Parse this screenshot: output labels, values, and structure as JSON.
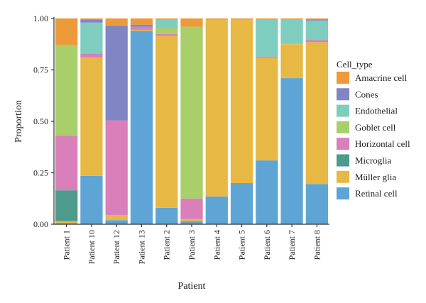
{
  "chart_data": {
    "type": "bar",
    "stacked": true,
    "xlabel": "Patient",
    "ylabel": "Proportion",
    "ylim": [
      0,
      1
    ],
    "yticks": [
      "0.00",
      "0.25",
      "0.50",
      "0.75",
      "1.00"
    ],
    "ytick_values": [
      0,
      0.25,
      0.5,
      0.75,
      1.0
    ],
    "categories": [
      "Patient 1",
      "Patient 10",
      "Patient 12",
      "Patient 13",
      "Patient 2",
      "Patient 3",
      "Patient 4",
      "Patient 5",
      "Patient 6",
      "Patient 7",
      "Patient 8"
    ],
    "legend_title": "Cell_type",
    "legend_position": "right",
    "grid": false,
    "series": [
      {
        "name": "Retinal cell",
        "color": "#5ea5d5",
        "values": [
          0.005,
          0.235,
          0.02,
          0.94,
          0.08,
          0.015,
          0.135,
          0.2,
          0.31,
          0.71,
          0.195
        ]
      },
      {
        "name": "Müller glia",
        "color": "#e8b844",
        "values": [
          0.01,
          0.575,
          0.025,
          0.005,
          0.835,
          0.01,
          0.86,
          0.795,
          0.5,
          0.165,
          0.69
        ]
      },
      {
        "name": "Microglia",
        "color": "#4e9a8b",
        "values": [
          0.15,
          0.0,
          0.0,
          0.0,
          0.0,
          0.0,
          0.0,
          0.0,
          0.0,
          0.0,
          0.0
        ]
      },
      {
        "name": "Horizontal cell",
        "color": "#d97fba",
        "values": [
          0.265,
          0.02,
          0.46,
          0.015,
          0.01,
          0.1,
          0.0,
          0.0,
          0.005,
          0.0,
          0.01
        ]
      },
      {
        "name": "Goblet cell",
        "color": "#a8cf6a",
        "values": [
          0.44,
          0.0,
          0.0,
          0.0,
          0.03,
          0.835,
          0.0,
          0.0,
          0.0,
          0.005,
          0.0
        ]
      },
      {
        "name": "Endothelial",
        "color": "#7ecdbf",
        "values": [
          0.0,
          0.15,
          0.0,
          0.0,
          0.04,
          0.0,
          0.0,
          0.0,
          0.18,
          0.115,
          0.095
        ]
      },
      {
        "name": "Cones",
        "color": "#8185c3",
        "values": [
          0.0,
          0.015,
          0.46,
          0.01,
          0.0,
          0.0,
          0.0,
          0.0,
          0.0,
          0.0,
          0.005
        ]
      },
      {
        "name": "Amacrine cell",
        "color": "#ec9a3a",
        "values": [
          0.13,
          0.005,
          0.035,
          0.03,
          0.005,
          0.04,
          0.005,
          0.005,
          0.005,
          0.005,
          0.005
        ]
      }
    ],
    "legend_order": [
      "Amacrine cell",
      "Cones",
      "Endothelial",
      "Goblet cell",
      "Horizontal cell",
      "Microglia",
      "Müller glia",
      "Retinal cell"
    ]
  }
}
